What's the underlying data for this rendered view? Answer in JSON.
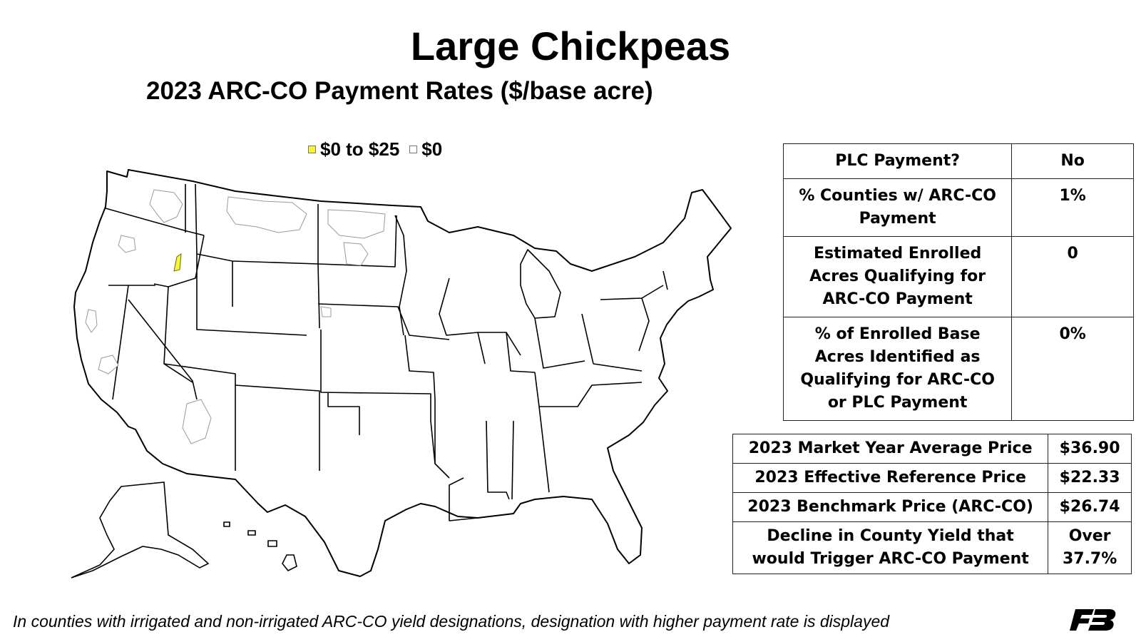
{
  "title": "Large Chickpeas",
  "subtitle": "2023 ARC-CO Payment Rates ($/base acre)",
  "legend": [
    {
      "label": "$0 to $25",
      "color": "#f5f53a"
    },
    {
      "label": "$0",
      "color": "#ffffff"
    }
  ],
  "plc_table": [
    {
      "label": "PLC Payment?",
      "value": "No"
    },
    {
      "label": "% Counties w/ ARC-CO Payment",
      "value": "1%"
    },
    {
      "label": "Estimated Enrolled Acres Qualifying for ARC-CO Payment",
      "value": "0"
    },
    {
      "label": "% of Enrolled Base Acres Identified as Qualifying for ARC-CO or PLC Payment",
      "value": "0%"
    }
  ],
  "price_table": [
    {
      "label": "2023 Market Year Average Price",
      "value": "$36.90"
    },
    {
      "label": "2023 Effective Reference Price",
      "value": "$22.33"
    },
    {
      "label": "2023 Benchmark Price (ARC-CO)",
      "value": "$26.74"
    },
    {
      "label": "Decline in County Yield that would Trigger ARC-CO Payment",
      "value": "Over 37.7%"
    }
  ],
  "footnote": "In counties with irrigated and non-irrigated ARC-CO yield designations, designation with higher payment rate is displayed",
  "colors": {
    "payment": "#f5f53a",
    "no_payment": "#ffffff",
    "outline": "#000000",
    "county_outline": "#9a9a9a"
  }
}
